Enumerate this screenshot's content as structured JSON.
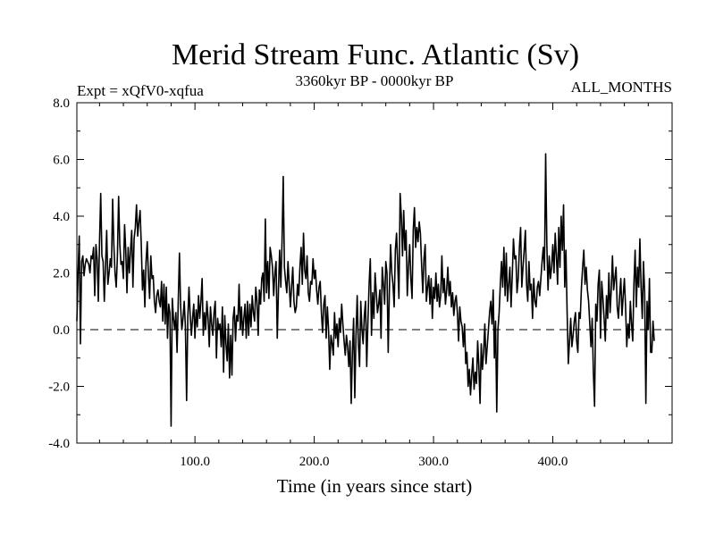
{
  "chart_data": {
    "type": "line",
    "title": "Merid Stream Func. Atlantic (Sv)",
    "subtitle": "3360kyr BP - 0000kyr BP",
    "experiment_label": "Expt = xQfV0-xqfua",
    "months_label": "ALL_MONTHS",
    "xlabel": "Time (in years since start)",
    "ylabel": "",
    "xlim": [
      1,
      500
    ],
    "ylim": [
      -4.0,
      8.0
    ],
    "x_ticks": [
      100,
      200,
      300,
      400
    ],
    "x_tick_labels": [
      "100.0",
      "200.0",
      "300.0",
      "400.0"
    ],
    "y_ticks": [
      -4,
      -2,
      0,
      2,
      4,
      6,
      8
    ],
    "y_tick_labels": [
      "-4.0",
      "-2.0",
      "0.0",
      "2.0",
      "4.0",
      "6.0",
      "8.0"
    ],
    "reference_line": {
      "y": 0.0,
      "style": "dashed"
    },
    "series": [
      {
        "name": "Merid Stream Func. Atlantic",
        "x_start": 1,
        "x_step": 1,
        "values": [
          0.3,
          2.0,
          3.3,
          -0.5,
          2.4,
          2.6,
          1.9,
          2.3,
          2.5,
          2.4,
          2.3,
          2.0,
          2.6,
          2.5,
          2.9,
          1.2,
          3.0,
          2.5,
          1.0,
          3.1,
          4.8,
          2.6,
          2.4,
          1.0,
          2.2,
          3.5,
          1.6,
          2.0,
          2.5,
          2.2,
          4.6,
          3.0,
          2.0,
          1.5,
          2.6,
          4.7,
          3.0,
          2.3,
          2.4,
          1.8,
          3.7,
          2.8,
          1.3,
          2.9,
          2.0,
          2.8,
          3.5,
          1.5,
          3.2,
          3.6,
          4.4,
          3.3,
          3.8,
          4.2,
          3.0,
          1.4,
          2.1,
          0.8,
          2.4,
          3.1,
          1.9,
          1.1,
          2.6,
          1.8,
          1.9,
          1.0,
          0.6,
          1.2,
          1.4,
          1.0,
          0.8,
          1.7,
          0.3,
          1.6,
          0.2,
          1.5,
          -0.3,
          0.9,
          0.6,
          -3.4,
          1.1,
          0.4,
          0.0,
          0.6,
          -0.8,
          1.0,
          2.7,
          0.8,
          0.0,
          0.4,
          1.0,
          0.1,
          -2.5,
          0.4,
          1.5,
          0.5,
          -0.2,
          0.4,
          0.9,
          -0.3,
          0.7,
          0.1,
          1.2,
          0.4,
          1.0,
          1.8,
          -0.2,
          0.6,
          0.0,
          1.0,
          0.4,
          -0.6,
          0.8,
          0.2,
          -0.2,
          0.6,
          1.0,
          -1.0,
          0.4,
          0.0,
          0.2,
          -0.6,
          0.8,
          -1.5,
          0.5,
          -0.5,
          -1.1,
          0.2,
          -1.7,
          -0.2,
          -1.6,
          0.4,
          0.8,
          -0.4,
          0.5,
          0.3,
          1.6,
          0.0,
          0.8,
          -0.2,
          0.4,
          0.9,
          -0.3,
          1.0,
          -0.2,
          0.9,
          0.1,
          1.2,
          0.6,
          0.3,
          1.5,
          1.0,
          -0.2,
          1.4,
          0.9,
          1.8,
          2.0,
          1.0,
          3.9,
          1.3,
          2.4,
          1.1,
          2.9,
          2.6,
          2.2,
          1.2,
          2.0,
          2.4,
          -0.3,
          1.4,
          2.8,
          1.5,
          3.1,
          5.4,
          2.2,
          1.7,
          1.3,
          2.4,
          1.6,
          0.8,
          1.5,
          2.2,
          1.0,
          0.6,
          0.8,
          1.6,
          1.2,
          2.2,
          2.9,
          1.6,
          3.4,
          2.1,
          1.8,
          2.6,
          1.3,
          1.0,
          1.7,
          1.6,
          2.5,
          1.8,
          2.1,
          1.4,
          0.9,
          1.5,
          1.7,
          0.6,
          -0.1,
          0.9,
          1.2,
          -0.3,
          0.8,
          0.0,
          -1.4,
          -0.2,
          -0.5,
          -0.9,
          0.6,
          -0.3,
          0.2,
          -0.6,
          0.4,
          -0.1,
          0.9,
          0.2,
          -0.4,
          -0.9,
          -0.2,
          -0.6,
          -1.3,
          -0.4,
          -2.6,
          -0.8,
          0.4,
          -2.4,
          -0.2,
          1.2,
          -0.5,
          -1.3,
          1.0,
          0.0,
          -0.5,
          0.5,
          1.0,
          -1.3,
          0.3,
          1.6,
          2.5,
          -0.2,
          1.3,
          0.4,
          2.0,
          1.3,
          0.6,
          0.9,
          1.4,
          -0.3,
          2.2,
          1.6,
          0.9,
          2.4,
          2.0,
          -0.8,
          1.4,
          3.0,
          2.0,
          1.6,
          0.8,
          2.8,
          3.4,
          2.3,
          1.1,
          4.8,
          4.0,
          2.6,
          4.2,
          2.8,
          3.5,
          1.2,
          2.2,
          3.0,
          1.8,
          1.1,
          3.5,
          4.3,
          2.9,
          3.6,
          3.1,
          3.8,
          3.4,
          2.3,
          1.3,
          2.5,
          3.0,
          1.0,
          1.5,
          1.9,
          0.9,
          1.8,
          0.4,
          1.5,
          1.1,
          2.0,
          1.0,
          1.6,
          0.8,
          1.2,
          2.6,
          1.3,
          1.8,
          0.9,
          1.4,
          2.2,
          1.2,
          1.7,
          0.8,
          1.3,
          0.5,
          1.0,
          1.2,
          0.6,
          -0.4,
          0.8,
          0.3,
          0.1,
          -0.6,
          0.2,
          -1.2,
          -0.8,
          -2.0,
          -1.4,
          -2.3,
          -1.6,
          -1.0,
          -2.1,
          -1.5,
          -1.9,
          -0.4,
          -1.3,
          -2.6,
          -0.5,
          -1.4,
          -0.8,
          0.2,
          -1.2,
          -0.6,
          0.0,
          0.6,
          1.0,
          0.2,
          1.4,
          -1.0,
          0.3,
          -2.9,
          0.0,
          0.6,
          1.6,
          2.4,
          1.5,
          2.9,
          1.2,
          2.7,
          1.0,
          1.6,
          2.2,
          0.8,
          1.9,
          3.2,
          2.5,
          2.6,
          1.3,
          1.8,
          2.9,
          3.6,
          1.5,
          2.2,
          2.8,
          3.5,
          1.6,
          1.0,
          2.4,
          1.4,
          1.6,
          0.4,
          1.8,
          1.0,
          0.8,
          1.5,
          1.7,
          1.2,
          1.8,
          2.4,
          2.9,
          2.1,
          6.2,
          3.0,
          1.4,
          2.6,
          1.8,
          2.2,
          3.0,
          2.0,
          3.4,
          2.6,
          1.6,
          3.6,
          2.2,
          4.0,
          2.8,
          4.4,
          1.5,
          2.8,
          0.6,
          -1.2,
          -0.4,
          0.4,
          -0.6,
          -0.2,
          0.3,
          0.6,
          -0.4,
          -0.8,
          0.6,
          0.4,
          1.5,
          2.2,
          2.8,
          1.6,
          2.2,
          1.4,
          1.0,
          0.2,
          -0.6,
          0.4,
          -1.5,
          -2.7,
          0.9,
          0.3,
          1.6,
          2.1,
          -0.3,
          1.7,
          1.1,
          0.4,
          -0.4,
          1.2,
          0.4,
          2.0,
          0.6,
          1.4,
          2.6,
          1.4,
          1.8,
          2.2,
          0.8,
          0.4,
          1.2,
          1.8,
          0.5,
          1.2,
          1.8,
          0.8,
          -0.6,
          0.2,
          -0.3,
          1.0,
          0.2,
          -0.4,
          1.6,
          2.8,
          0.8,
          2.2,
          1.5,
          3.2,
          1.5,
          0.4,
          2.4,
          1.3,
          -2.6,
          1.0,
          0.0,
          1.8,
          -0.8,
          -0.8,
          0.3,
          -0.4
        ]
      }
    ]
  }
}
